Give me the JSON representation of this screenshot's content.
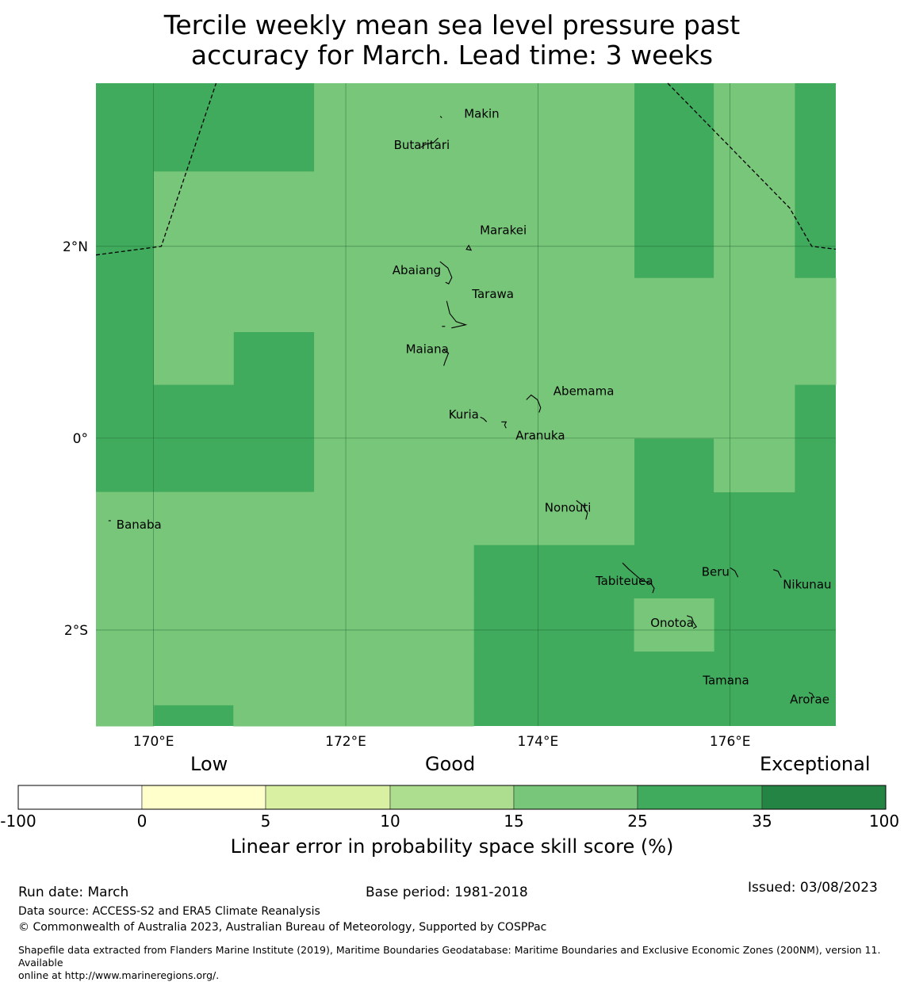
{
  "title": {
    "line1": "Tercile weekly mean sea level pressure past",
    "line2": "accuracy for March. Lead time: 3 weeks"
  },
  "map": {
    "lon_range": [
      169.4,
      177.1
    ],
    "lat_range": [
      -3.0,
      3.7
    ],
    "grid_lons": [
      170,
      172,
      174,
      176
    ],
    "grid_lats": [
      2,
      0,
      -2
    ],
    "lon_labels": [
      "170°E",
      "172°E",
      "174°E",
      "176°E"
    ],
    "lat_labels": [
      "2°N",
      "0°",
      "2°S"
    ],
    "cell_size_deg": 0.8333,
    "background_color": "#41ab5d",
    "cells_15_25": [
      {
        "lon": [
          171.67,
          173.33
        ],
        "lat": [
          2.78,
          3.7
        ]
      },
      {
        "lon": [
          173.33,
          175.0
        ],
        "lat": [
          2.78,
          3.7
        ]
      },
      {
        "lon": [
          175.83,
          176.67
        ],
        "lat": [
          2.78,
          3.7
        ]
      },
      {
        "lon": [
          170.0,
          171.67
        ],
        "lat": [
          2.22,
          2.78
        ]
      },
      {
        "lon": [
          171.67,
          175.0
        ],
        "lat": [
          2.22,
          2.78
        ]
      },
      {
        "lon": [
          175.83,
          176.67
        ],
        "lat": [
          2.22,
          2.78
        ]
      },
      {
        "lon": [
          170.0,
          175.0
        ],
        "lat": [
          1.67,
          2.22
        ]
      },
      {
        "lon": [
          175.83,
          176.67
        ],
        "lat": [
          1.67,
          2.22
        ]
      },
      {
        "lon": [
          170.0,
          177.1
        ],
        "lat": [
          1.11,
          1.67
        ]
      },
      {
        "lon": [
          170.0,
          170.83
        ],
        "lat": [
          0.56,
          1.11
        ]
      },
      {
        "lon": [
          171.67,
          177.1
        ],
        "lat": [
          0.56,
          1.11
        ]
      },
      {
        "lon": [
          171.67,
          176.67
        ],
        "lat": [
          0.0,
          0.56
        ]
      },
      {
        "lon": [
          171.67,
          175.0
        ],
        "lat": [
          -0.56,
          0.0
        ]
      },
      {
        "lon": [
          175.83,
          176.67
        ],
        "lat": [
          -0.56,
          0.0
        ]
      },
      {
        "lon": [
          169.4,
          173.33
        ],
        "lat": [
          -1.11,
          -0.56
        ]
      },
      {
        "lon": [
          173.33,
          175.0
        ],
        "lat": [
          -1.11,
          -0.56
        ]
      },
      {
        "lon": [
          169.4,
          173.33
        ],
        "lat": [
          -1.67,
          -1.11
        ]
      },
      {
        "lon": [
          169.4,
          173.33
        ],
        "lat": [
          -2.22,
          -1.67
        ]
      },
      {
        "lon": [
          175.0,
          175.83
        ],
        "lat": [
          -2.22,
          -1.67
        ]
      },
      {
        "lon": [
          169.4,
          173.33
        ],
        "lat": [
          -2.78,
          -2.22
        ]
      },
      {
        "lon": [
          169.4,
          170.0
        ],
        "lat": [
          -3.0,
          -2.78
        ]
      },
      {
        "lon": [
          170.83,
          173.33
        ],
        "lat": [
          -3.0,
          -2.78
        ]
      }
    ],
    "cells_15_25_color": "#78c679",
    "eez_boundary_west": [
      [
        169.4,
        1.91
      ],
      [
        170.08,
        2.0
      ],
      [
        170.65,
        3.7
      ]
    ],
    "eez_boundary_east": [
      [
        175.35,
        3.7
      ],
      [
        176.62,
        2.4
      ],
      [
        176.85,
        2.0
      ],
      [
        177.1,
        1.97
      ]
    ],
    "islands": [
      {
        "name": "Makin",
        "lon": 173.0,
        "lat": 3.34
      },
      {
        "name": "Butaritari",
        "lon": 172.78,
        "lat": 3.03
      },
      {
        "name": "Marakei",
        "lon": 173.28,
        "lat": 2.01
      },
      {
        "name": "Abaiang",
        "lon": 172.98,
        "lat": 1.84
      },
      {
        "name": "Tarawa",
        "lon": 173.05,
        "lat": 1.43
      },
      {
        "name": "Maiana",
        "lon": 173.02,
        "lat": 0.92
      },
      {
        "name": "Abemama",
        "lon": 173.88,
        "lat": 0.4
      },
      {
        "name": "Kuria",
        "lon": 173.4,
        "lat": 0.22
      },
      {
        "name": "Aranuka",
        "lon": 173.62,
        "lat": 0.17
      },
      {
        "name": "Nonouti",
        "lon": 174.4,
        "lat": -0.65
      },
      {
        "name": "Banaba",
        "lon": 169.53,
        "lat": -0.86
      },
      {
        "name": "Tabiteuea",
        "lon": 174.88,
        "lat": -1.3
      },
      {
        "name": "Beru",
        "lon": 176.0,
        "lat": -1.35
      },
      {
        "name": "Nikunau",
        "lon": 176.45,
        "lat": -1.37
      },
      {
        "name": "Onotoa",
        "lon": 175.55,
        "lat": -1.85
      },
      {
        "name": "Tamana",
        "lon": 175.98,
        "lat": -2.5
      },
      {
        "name": "Arorae",
        "lon": 176.82,
        "lat": -2.65
      }
    ]
  },
  "legend": {
    "categories": [
      "Low",
      "Good",
      "Exceptional"
    ],
    "bins": [
      {
        "from": "-100",
        "to": "0",
        "color": "#ffffff"
      },
      {
        "from": "0",
        "to": "5",
        "color": "#ffffcc"
      },
      {
        "from": "5",
        "to": "10",
        "color": "#d9f0a3"
      },
      {
        "from": "10",
        "to": "15",
        "color": "#addd8e"
      },
      {
        "from": "15",
        "to": "25",
        "color": "#78c679"
      },
      {
        "from": "25",
        "to": "35",
        "color": "#41ab5d"
      },
      {
        "from": "35",
        "to": "100",
        "color": "#238443"
      }
    ],
    "ticks": [
      "-100",
      "0",
      "5",
      "10",
      "15",
      "25",
      "35",
      "100"
    ],
    "label": "Linear error in probability space skill score (%)"
  },
  "footer": {
    "run_date": "Run date: March",
    "base_period": "Base period: 1981-2018",
    "issued": "Issued: 03/08/2023",
    "data_source": "Data source: ACCESS-S2 and ERA5 Climate Reanalysis",
    "copyright": "© Commonwealth of Australia 2023, Australian Bureau of Meteorology, Supported by COSPPac",
    "shapefile_1": "Shapefile data extracted from Flanders Marine Institute (2019), Maritime Boundaries Geodatabase: Maritime Boundaries and Exclusive Economic Zones (200NM), version 11. Available",
    "shapefile_2": "online at http://www.marineregions.org/."
  }
}
